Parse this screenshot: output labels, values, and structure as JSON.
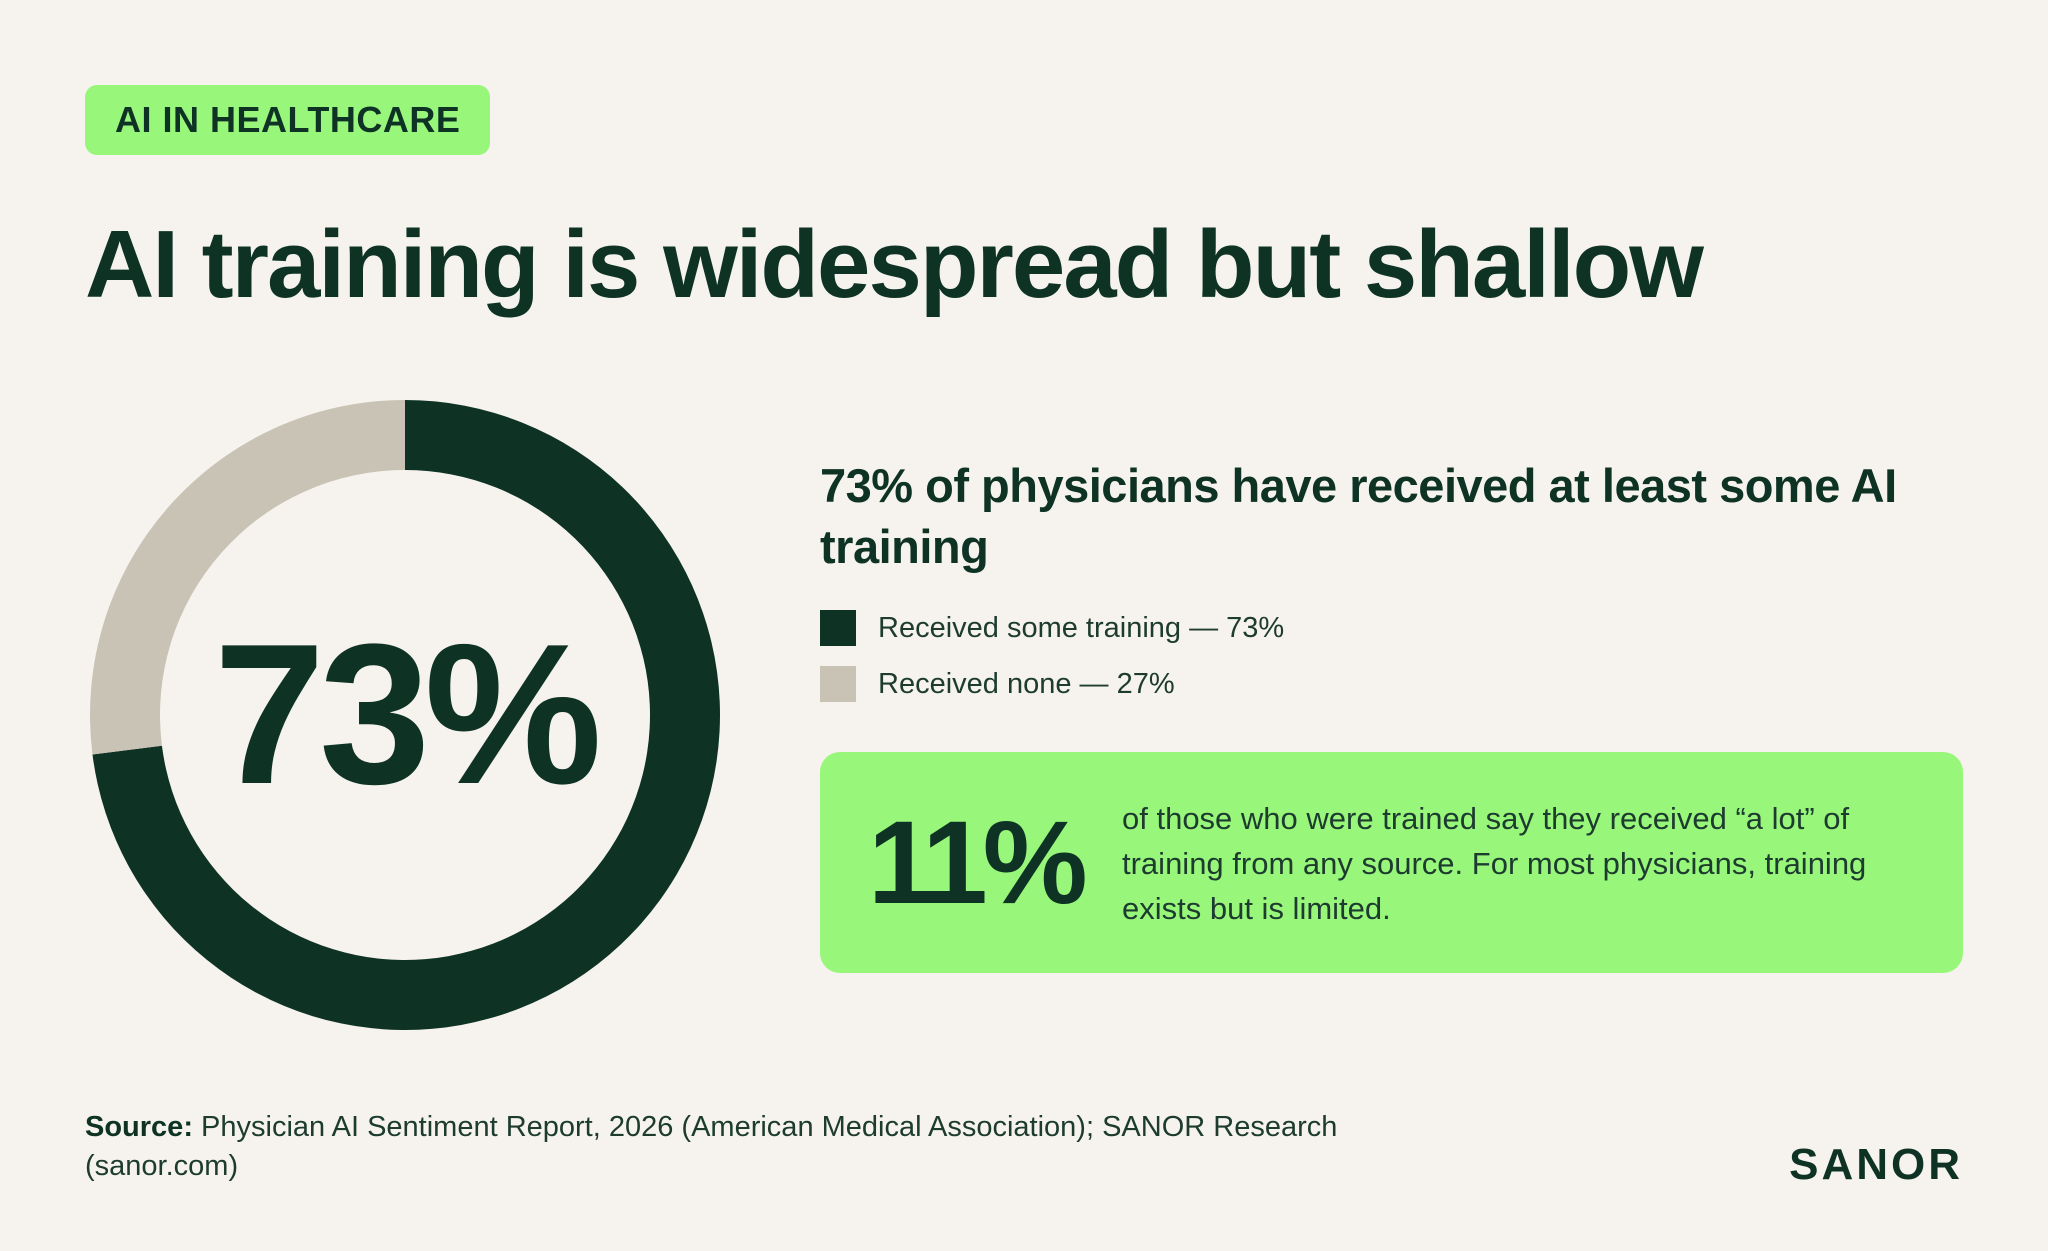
{
  "tag": "AI IN HEALTHCARE",
  "title": "AI training is widespread but shallow",
  "colors": {
    "background": "#f6f3ee",
    "dark_green": "#0e3325",
    "light_gray": "#c8c3b5",
    "accent_green": "#98f77a"
  },
  "chart_data": {
    "type": "pie",
    "variant": "donut",
    "center_label": "73%",
    "title": "73% of physicians have received at least some AI training",
    "slices": [
      {
        "label": "Received some training",
        "value": 73,
        "legend_text": "Received some training — 73%",
        "color": "#0e3325"
      },
      {
        "label": "Received none",
        "value": 27,
        "legend_text": "Received none — 27%",
        "color": "#c8c3b5"
      }
    ],
    "legend_placement": "right"
  },
  "callout": {
    "stat": "11%",
    "text": "of those who were trained say they received “a lot” of training from any source. For most physicians, training exists but is limited."
  },
  "source": {
    "label": "Source:",
    "text": " Physician AI Sentiment Report, 2026 (American Medical Association); SANOR Research (sanor.com)"
  },
  "brand": "SANOR"
}
